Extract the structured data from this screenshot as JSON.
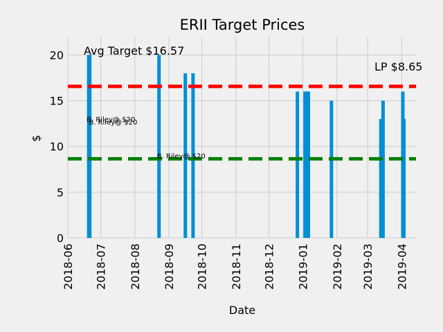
{
  "chart_data": {
    "type": "bar",
    "title": "ERII Target Prices",
    "xlabel": "Date",
    "ylabel": "$",
    "ylim": [
      0,
      22
    ],
    "xlim": [
      "2018-06-01",
      "2019-04-14"
    ],
    "yticks": [
      0,
      5,
      10,
      15,
      20
    ],
    "xticks": [
      "2018-06",
      "2018-07",
      "2018-08",
      "2018-09",
      "2018-10",
      "2018-11",
      "2018-12",
      "2019-01",
      "2019-02",
      "2019-03",
      "2019-04"
    ],
    "grid": true,
    "bar_color": "#008fd5",
    "bars": [
      {
        "date": "2018-06-20",
        "value": 20
      },
      {
        "date": "2018-06-21",
        "value": 20
      },
      {
        "date": "2018-08-23",
        "value": 20
      },
      {
        "date": "2018-09-16",
        "value": 18
      },
      {
        "date": "2018-09-23",
        "value": 18
      },
      {
        "date": "2018-12-27",
        "value": 16
      },
      {
        "date": "2019-01-03",
        "value": 16
      },
      {
        "date": "2019-01-04",
        "value": 16
      },
      {
        "date": "2019-01-05",
        "value": 16
      },
      {
        "date": "2019-01-06",
        "value": 16
      },
      {
        "date": "2019-01-27",
        "value": 15
      },
      {
        "date": "2019-03-13",
        "value": 13
      },
      {
        "date": "2019-03-15",
        "value": 15
      },
      {
        "date": "2019-04-02",
        "value": 16
      },
      {
        "date": "2019-04-03",
        "value": 13
      }
    ],
    "reference_lines": [
      {
        "label": "Avg Target $16.57",
        "value": 16.57,
        "color": "#ff0000"
      },
      {
        "label": "LP $8.65",
        "value": 8.65,
        "color": "#008000"
      }
    ],
    "annotations": [
      {
        "text": "B. Riley@ $20",
        "date": "2018-06-20",
        "y": 13.0
      },
      {
        "text": "B. Riley@ $20",
        "date": "2018-06-22",
        "y": 12.7
      },
      {
        "text": "B. Riley@ $20",
        "date": "2018-08-23",
        "y": 9.0
      }
    ]
  }
}
